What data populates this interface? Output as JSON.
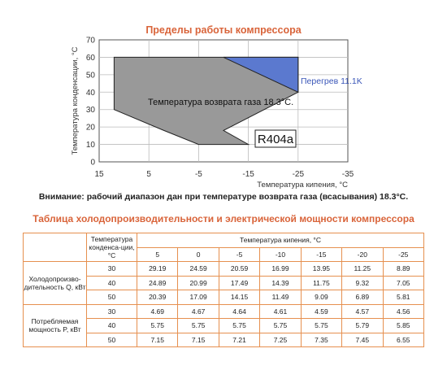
{
  "chart_title": "Пределы работы компрессора",
  "chart_data": {
    "type": "area",
    "title": "Пределы работы компрессора",
    "xlabel": "Температура кипения, °C",
    "ylabel": "Температура конденсации, °C",
    "xlim": [
      15,
      -35
    ],
    "ylim": [
      0,
      70
    ],
    "x_ticks": [
      "15",
      "5",
      "-5",
      "-15",
      "-25",
      "-35"
    ],
    "y_ticks": [
      "0",
      "10",
      "20",
      "30",
      "40",
      "50",
      "60",
      "70"
    ],
    "grid": true,
    "series": [
      {
        "name": "Температура возврата газа 18.3°C.",
        "color": "#999999",
        "polygon": [
          [
            12,
            30
          ],
          [
            12,
            60
          ],
          [
            -25,
            60
          ],
          [
            -25,
            55
          ],
          [
            -25,
            40
          ],
          [
            -10,
            18
          ],
          [
            -15,
            10
          ],
          [
            -5,
            10
          ],
          [
            2,
            18
          ],
          [
            12,
            30
          ]
        ]
      },
      {
        "name": "Перегрев 11.1K",
        "color": "#5b79cf",
        "polygon": [
          [
            -10,
            60
          ],
          [
            -25,
            60
          ],
          [
            -25,
            40
          ],
          [
            -10,
            60
          ]
        ]
      }
    ],
    "labels": {
      "gray_region": "Температура возврата газа 18.3°C.",
      "blue_region": "Перегрев 11.1K",
      "refrigerant": "R404a"
    }
  },
  "note": "Внимание: рабочий диапазон дан при температуре возврата газа (всасывания) 18.3°C.",
  "table_title": "Таблица холодопроизводительности и электрической мощности компрессора",
  "table": {
    "cond_header": "Температура конденса-ции, °C",
    "evap_header": "Температура кипения, °C",
    "evap_temps": [
      "5",
      "0",
      "-5",
      "-10",
      "-15",
      "-20",
      "-25"
    ],
    "groups": [
      {
        "label": "Холодопроизво-дительность Q, кВт",
        "rows": [
          {
            "cond": "30",
            "values": [
              "29.19",
              "24.59",
              "20.59",
              "16.99",
              "13.95",
              "11.25",
              "8.89"
            ]
          },
          {
            "cond": "40",
            "values": [
              "24.89",
              "20.99",
              "17.49",
              "14.39",
              "11.75",
              "9.32",
              "7.05"
            ]
          },
          {
            "cond": "50",
            "values": [
              "20.39",
              "17.09",
              "14.15",
              "11.49",
              "9.09",
              "6.89",
              "5.81"
            ]
          }
        ]
      },
      {
        "label": "Потребляемая мощность P, кВт",
        "rows": [
          {
            "cond": "30",
            "values": [
              "4.69",
              "4.67",
              "4.64",
              "4.61",
              "4.59",
              "4.57",
              "4.56"
            ]
          },
          {
            "cond": "40",
            "values": [
              "5.75",
              "5.75",
              "5.75",
              "5.75",
              "5.75",
              "5.79",
              "5.85"
            ]
          },
          {
            "cond": "50",
            "values": [
              "7.15",
              "7.15",
              "7.21",
              "7.25",
              "7.35",
              "7.45",
              "6.55"
            ]
          }
        ]
      }
    ]
  }
}
